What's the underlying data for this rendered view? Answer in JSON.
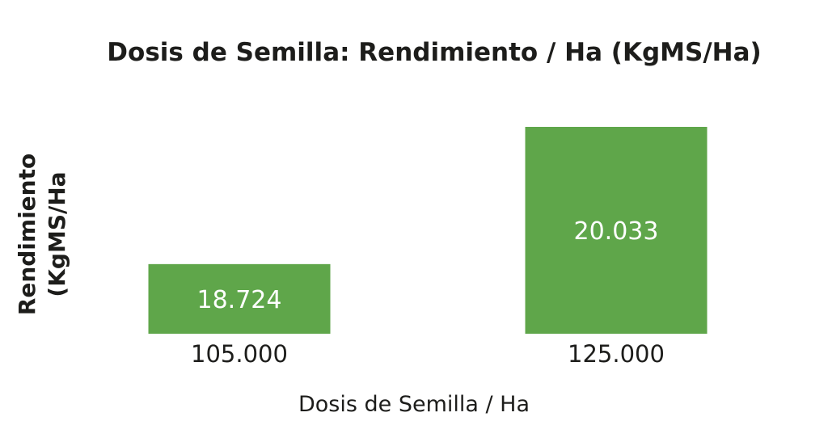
{
  "chart_data": {
    "type": "bar",
    "title": "Dosis de Semilla: Rendimiento / Ha (KgMS/Ha)",
    "xlabel": "Dosis de Semilla / Ha",
    "ylabel_lines": [
      "Rendimiento",
      "(KgMS/Ha"
    ],
    "categories": [
      "105.000",
      "125.000"
    ],
    "values": [
      18724,
      20033
    ],
    "value_labels": [
      "18.724",
      "20.033"
    ],
    "bar_color": "#5fa64a",
    "grid": false,
    "legend": "none",
    "y_axis_visible": false
  }
}
